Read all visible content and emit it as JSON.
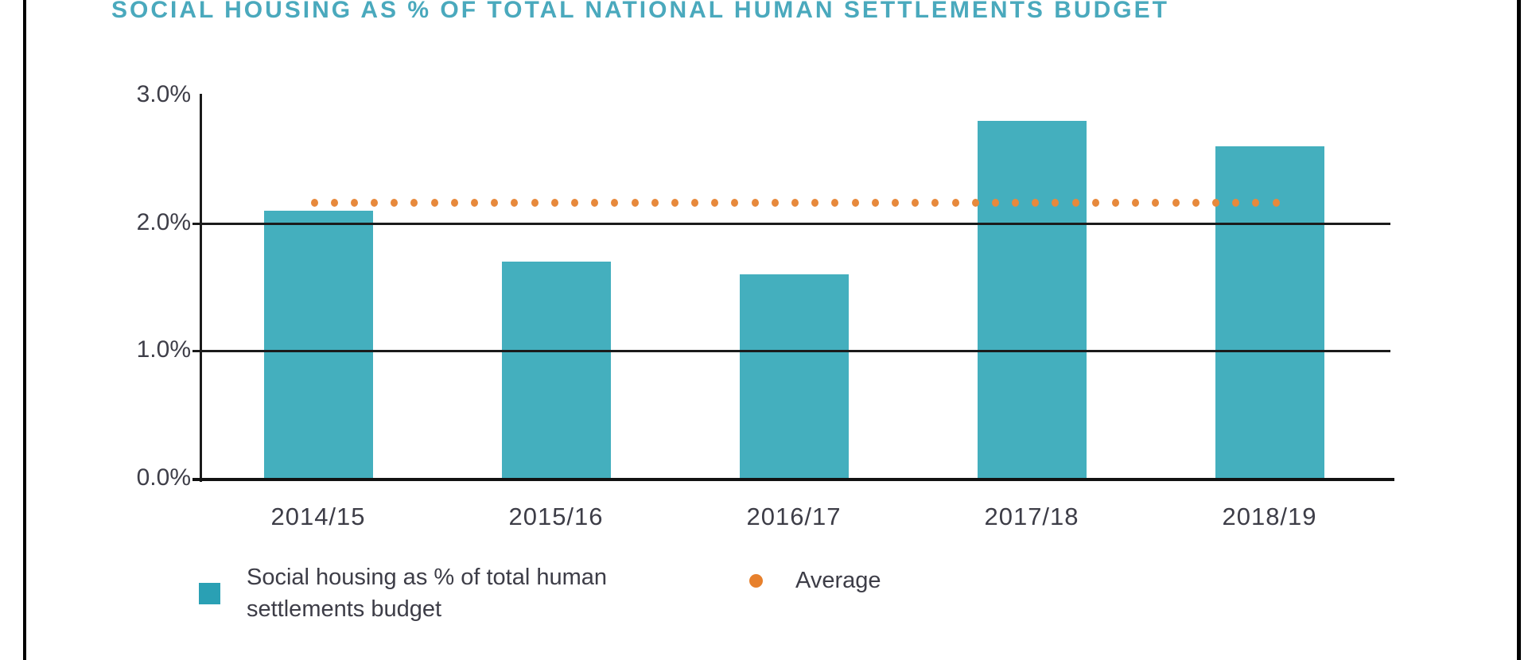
{
  "title": "SOCIAL HOUSING AS % OF TOTAL NATIONAL HUMAN SETTLEMENTS BUDGET",
  "chart_data": {
    "type": "bar",
    "title": "SOCIAL HOUSING AS % OF TOTAL NATIONAL HUMAN SETTLEMENTS BUDGET",
    "categories": [
      "2014/15",
      "2015/16",
      "2016/17",
      "2017/18",
      "2018/19"
    ],
    "series": [
      {
        "name": "Social housing as % of total human settlements budget",
        "type": "bar",
        "values": [
          2.1,
          1.7,
          1.6,
          2.8,
          2.6
        ],
        "color": "#44afbe"
      },
      {
        "name": "Average",
        "type": "dotted-line",
        "value": 2.16,
        "color": "#e7893c"
      }
    ],
    "xlabel": "",
    "ylabel": "",
    "ylim": [
      0,
      3
    ],
    "y_ticks": [
      {
        "label": "3.0%",
        "value": 3
      },
      {
        "label": "2.0%",
        "value": 2
      },
      {
        "label": "1.0%",
        "value": 1
      },
      {
        "label": "0.0%",
        "value": 0
      }
    ],
    "gridline_values": [
      2,
      1
    ],
    "grid": "horizontal only",
    "legend_position": "bottom"
  },
  "legend": {
    "series1_label": "Social housing as % of total human settlements budget",
    "series2_label": "Average"
  },
  "colors": {
    "bar_teal": "#44afbe",
    "title_teal": "#4aa9bd",
    "average_orange": "#e7893c",
    "axis_black": "#1b1b1b",
    "label_gray": "#3e3e48"
  }
}
